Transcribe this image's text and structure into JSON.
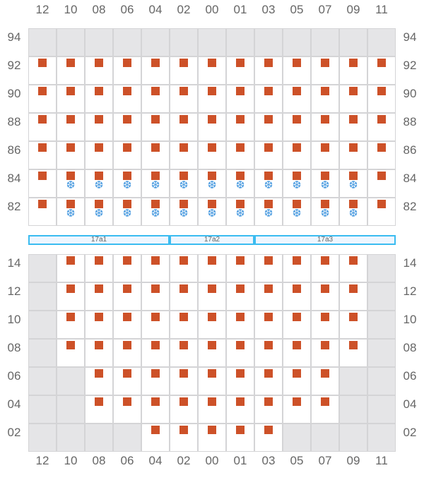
{
  "columns": [
    "12",
    "10",
    "08",
    "06",
    "04",
    "02",
    "00",
    "01",
    "03",
    "05",
    "07",
    "09",
    "11"
  ],
  "top_section": {
    "rows": [
      {
        "label": "94",
        "cells": "ggggggggggggg"
      },
      {
        "label": "92",
        "cells": "sssssssssssss"
      },
      {
        "label": "90",
        "cells": "sssssssssssss"
      },
      {
        "label": "88",
        "cells": "sssssssssssss"
      },
      {
        "label": "86",
        "cells": "sssssssssssss"
      },
      {
        "label": "84",
        "cells": "sfffffffffffs"
      },
      {
        "label": "82",
        "cells": "sfffffffffffs"
      }
    ]
  },
  "zones": [
    {
      "label": "17a1"
    },
    {
      "label": "17a2"
    },
    {
      "label": "17a3"
    }
  ],
  "bottom_section": {
    "rows": [
      {
        "label": "14",
        "cells": "gsssssssssssg"
      },
      {
        "label": "12",
        "cells": "gsssssssssssg"
      },
      {
        "label": "10",
        "cells": "gsssssssssssg"
      },
      {
        "label": "08",
        "cells": "gsssssssssssg"
      },
      {
        "label": "06",
        "cells": "ggsssssssssgg"
      },
      {
        "label": "04",
        "cells": "ggsssssssssgg"
      },
      {
        "label": "02",
        "cells": "ggggsssssgggg"
      }
    ]
  },
  "legend_codes": {
    "g": "unavailable",
    "s": "occupied",
    "f": "occupied-refrigerated"
  },
  "colors": {
    "occupied": "#cd5128",
    "refrigerated": "#4a9be0",
    "zone_border": "#3bbcf0",
    "unavailable": "#e5e5e7"
  },
  "icons": {
    "occupied": "square-marker",
    "refrigerated": "snowflake-icon"
  }
}
